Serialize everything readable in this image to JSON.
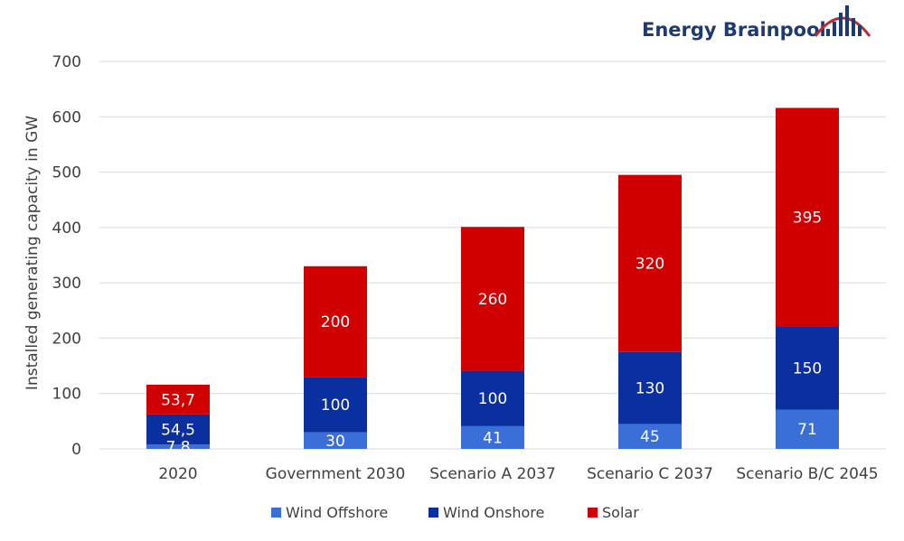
{
  "brand": {
    "name": "Energy Brainpool",
    "logo_colors": {
      "arc": "#c0292e",
      "bars": "#1e3a6e"
    }
  },
  "chart_data": {
    "type": "bar",
    "stacked": true,
    "categories": [
      "2020",
      "Government 2030",
      "Scenario A 2037",
      "Scenario C 2037",
      "Scenario B/C 2045"
    ],
    "series": [
      {
        "name": "Wind Offshore",
        "color": "#3a6fd8",
        "values": [
          7.8,
          30,
          41,
          45,
          71
        ],
        "labels": [
          "7,8",
          "30",
          "41",
          "45",
          "71"
        ]
      },
      {
        "name": "Wind Onshore",
        "color": "#0a2f9e",
        "values": [
          54.5,
          100,
          100,
          130,
          150
        ],
        "labels": [
          "54,5",
          "100",
          "100",
          "130",
          "150"
        ]
      },
      {
        "name": "Solar",
        "color": "#d00000",
        "values": [
          53.7,
          200,
          260,
          320,
          395
        ],
        "labels": [
          "53,7",
          "200",
          "260",
          "320",
          "395"
        ]
      }
    ],
    "ylabel": "Installed generating capacity in GW",
    "xlabel": "",
    "ylim": [
      0,
      700
    ],
    "yticks": [
      0,
      100,
      200,
      300,
      400,
      500,
      600,
      700
    ],
    "grid": true,
    "gridColor": "#d9d9d9",
    "legend": "bottom"
  }
}
